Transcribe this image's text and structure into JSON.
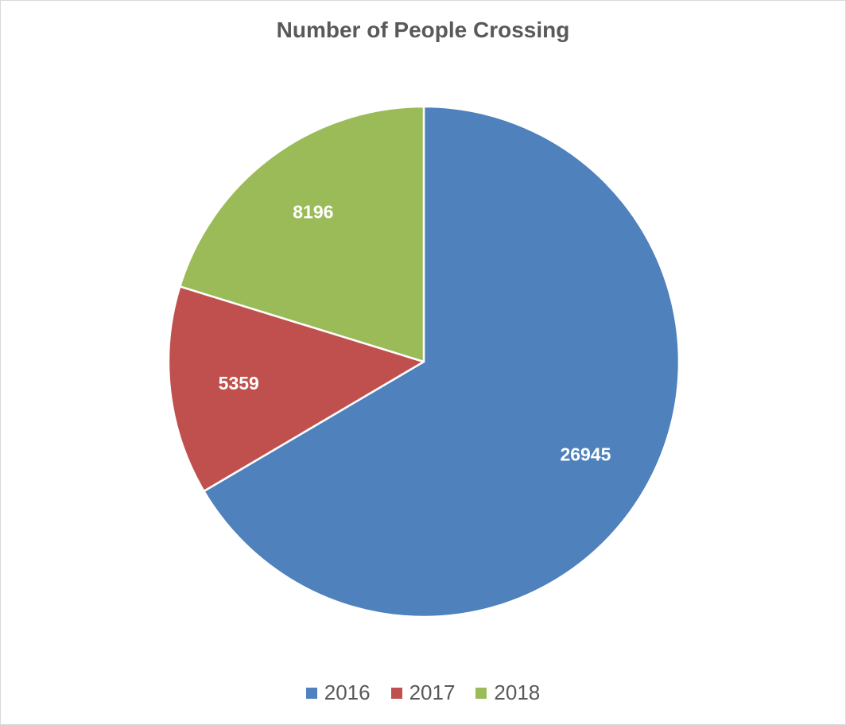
{
  "chart_data": {
    "type": "pie",
    "title": "Number of People Crossing",
    "categories": [
      "2016",
      "2017",
      "2018"
    ],
    "values": [
      26945,
      5359,
      8196
    ],
    "data_labels": [
      "26945",
      "5359",
      "8196"
    ],
    "colors": [
      "#4f81bd",
      "#c0504d",
      "#9bbb59"
    ],
    "legend": {
      "placement": "bottom",
      "entries": [
        "2016",
        "2017",
        "2018"
      ]
    }
  }
}
